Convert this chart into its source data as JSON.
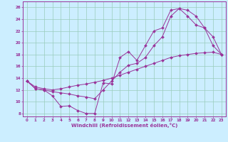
{
  "xlabel": "Windchill (Refroidissement éolien,°C)",
  "line_color": "#993399",
  "bg_color": "#cceeff",
  "grid_color": "#99ccbb",
  "xlim": [
    -0.5,
    23.5
  ],
  "ylim": [
    7.5,
    27
  ],
  "xticks": [
    0,
    1,
    2,
    3,
    4,
    5,
    6,
    7,
    8,
    9,
    10,
    11,
    12,
    13,
    14,
    15,
    16,
    17,
    18,
    19,
    20,
    21,
    22,
    23
  ],
  "yticks": [
    8,
    10,
    12,
    14,
    16,
    18,
    20,
    22,
    24,
    26
  ],
  "line1_x": [
    0,
    1,
    2,
    3,
    4,
    5,
    6,
    7,
    8,
    9,
    10,
    11,
    12,
    13,
    14,
    15,
    16,
    17,
    18,
    19,
    20,
    21,
    22,
    23
  ],
  "line1_y": [
    13.5,
    12.2,
    12.0,
    11.0,
    9.2,
    9.3,
    8.5,
    8.0,
    8.0,
    13.2,
    13.0,
    17.5,
    18.5,
    17.0,
    19.5,
    22.0,
    22.5,
    25.5,
    25.8,
    24.5,
    23.0,
    22.5,
    21.0,
    18.0
  ],
  "line2_x": [
    0,
    1,
    2,
    3,
    4,
    5,
    6,
    7,
    8,
    9,
    10,
    11,
    12,
    13,
    14,
    15,
    16,
    17,
    18,
    19,
    20,
    21,
    22,
    23
  ],
  "line2_y": [
    13.5,
    12.2,
    12.0,
    11.7,
    11.5,
    11.3,
    11.0,
    10.8,
    10.5,
    12.0,
    13.5,
    15.0,
    16.2,
    16.5,
    17.5,
    19.5,
    21.0,
    24.5,
    25.8,
    25.5,
    24.5,
    22.5,
    19.5,
    18.0
  ],
  "line3_x": [
    0,
    1,
    2,
    3,
    4,
    5,
    6,
    7,
    8,
    9,
    10,
    11,
    12,
    13,
    14,
    15,
    16,
    17,
    18,
    19,
    20,
    21,
    22,
    23
  ],
  "line3_y": [
    13.5,
    12.5,
    12.2,
    12.0,
    12.2,
    12.5,
    12.8,
    13.0,
    13.3,
    13.6,
    14.0,
    14.5,
    15.0,
    15.5,
    16.0,
    16.5,
    17.0,
    17.5,
    17.8,
    18.0,
    18.2,
    18.3,
    18.4,
    18.0
  ]
}
